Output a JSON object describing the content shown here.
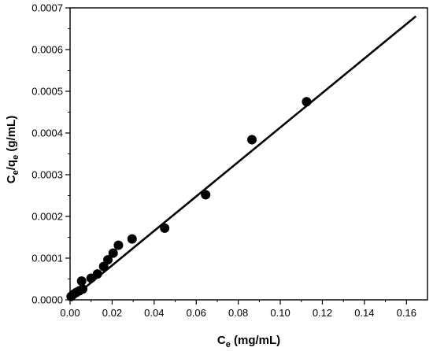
{
  "chart_data": {
    "type": "scatter",
    "x_label_main": "C",
    "x_label_sub": "e",
    "x_label_unit": " (mg/mL)",
    "y_label_main1": "C",
    "y_label_sub1": "e",
    "y_label_mid": "/q",
    "y_label_sub2": "e",
    "y_label_unit": " (g/mL)",
    "xlim": [
      0.0,
      0.17
    ],
    "ylim": [
      0.0,
      0.0007
    ],
    "x_ticks": [
      "0.00",
      "0.02",
      "0.04",
      "0.06",
      "0.08",
      "0.10",
      "0.12",
      "0.14",
      "0.16"
    ],
    "x_tick_values": [
      0.0,
      0.02,
      0.04,
      0.06,
      0.08,
      0.1,
      0.12,
      0.14,
      0.16
    ],
    "y_ticks": [
      "0.0000",
      "0.0001",
      "0.0002",
      "0.0003",
      "0.0004",
      "0.0005",
      "0.0006",
      "0.0007"
    ],
    "y_tick_values": [
      0.0,
      0.0001,
      0.0002,
      0.0003,
      0.0004,
      0.0005,
      0.0006,
      0.0007
    ],
    "grid": false,
    "legend": "none",
    "series": [
      {
        "type": "scatter",
        "marker": "filled-circle",
        "color": "#000000",
        "points": [
          {
            "x": 0.0005,
            "y": 8e-06
          },
          {
            "x": 0.0015,
            "y": 1.3e-05
          },
          {
            "x": 0.003,
            "y": 1.8e-05
          },
          {
            "x": 0.0045,
            "y": 2.2e-05
          },
          {
            "x": 0.006,
            "y": 2.6e-05
          },
          {
            "x": 0.0055,
            "y": 4.5e-05
          },
          {
            "x": 0.01,
            "y": 5.2e-05
          },
          {
            "x": 0.013,
            "y": 6.2e-05
          },
          {
            "x": 0.016,
            "y": 8e-05
          },
          {
            "x": 0.018,
            "y": 9.6e-05
          },
          {
            "x": 0.0205,
            "y": 0.000112
          },
          {
            "x": 0.023,
            "y": 0.000131
          },
          {
            "x": 0.0295,
            "y": 0.000146
          },
          {
            "x": 0.045,
            "y": 0.000172
          },
          {
            "x": 0.0645,
            "y": 0.000252
          },
          {
            "x": 0.0865,
            "y": 0.000384
          },
          {
            "x": 0.1125,
            "y": 0.000475
          }
        ]
      },
      {
        "type": "line",
        "color": "#000000",
        "points": [
          {
            "x": 0.0,
            "y": 0.0
          },
          {
            "x": 0.1645,
            "y": 0.00068
          }
        ]
      }
    ]
  }
}
